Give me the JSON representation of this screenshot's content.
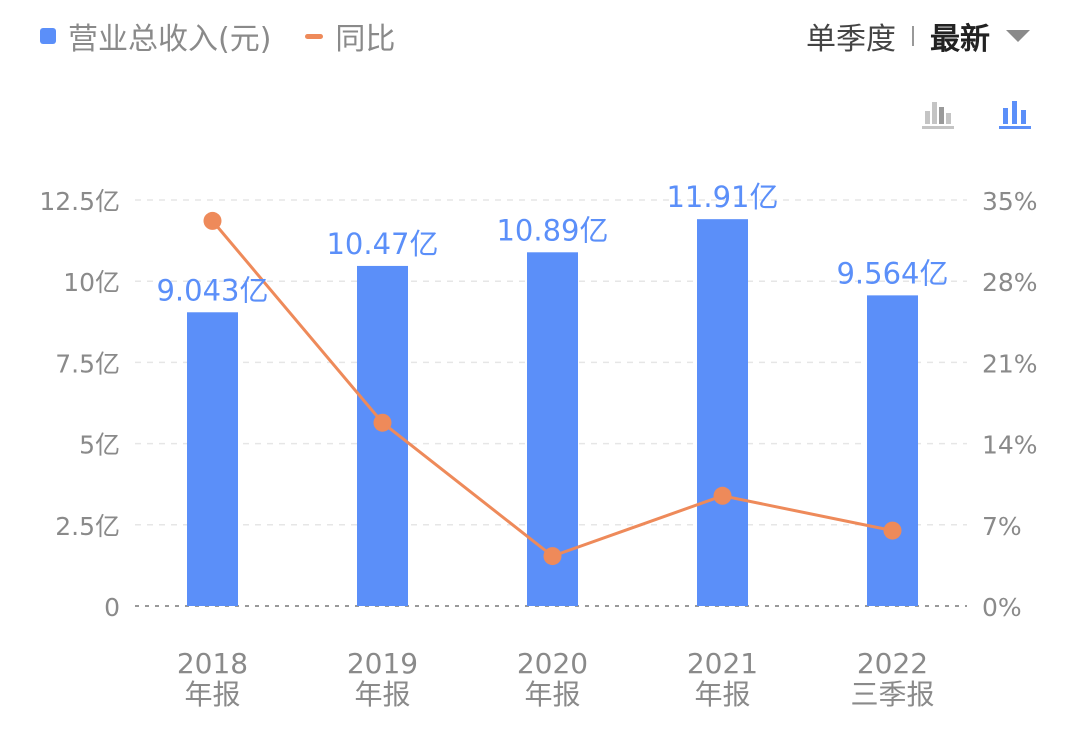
{
  "legend": {
    "bar_label": "营业总收入(元)",
    "line_label": "同比"
  },
  "controls": {
    "period_label": "单季度",
    "select_value": "最新"
  },
  "icons": {
    "chart_toggle_1": "bar-chart-gray-icon",
    "chart_toggle_2": "bar-chart-blue-icon"
  },
  "colors": {
    "bar": "#5B8FF9",
    "line": "#EE8A5A",
    "bar_label": "#5B8FF9",
    "axis_text": "#8a8a8a",
    "grid": "#e6e6e6"
  },
  "chart_data": {
    "type": "bar",
    "categories": [
      {
        "year": "2018",
        "period": "年报"
      },
      {
        "year": "2019",
        "period": "年报"
      },
      {
        "year": "2020",
        "period": "年报"
      },
      {
        "year": "2021",
        "period": "年报"
      },
      {
        "year": "2022",
        "period": "三季报"
      }
    ],
    "series": [
      {
        "name": "营业总收入(元)",
        "type": "bar",
        "axis": "left",
        "values": [
          9.043,
          10.47,
          10.89,
          11.91,
          9.564
        ],
        "labels": [
          "9.043亿",
          "10.47亿",
          "10.89亿",
          "11.91亿",
          "9.564亿"
        ]
      },
      {
        "name": "同比",
        "type": "line",
        "axis": "right",
        "values": [
          33.2,
          15.8,
          4.3,
          9.5,
          6.5
        ]
      }
    ],
    "y_left": {
      "ylim": [
        0,
        12.5
      ],
      "ticks": [
        0,
        2.5,
        5,
        7.5,
        10,
        12.5
      ],
      "tick_labels": [
        "0",
        "2.5亿",
        "5亿",
        "7.5亿",
        "10亿",
        "12.5亿"
      ]
    },
    "y_right": {
      "ylim": [
        0,
        35
      ],
      "ticks": [
        0,
        7,
        14,
        21,
        28,
        35
      ],
      "tick_labels": [
        "0%",
        "7%",
        "14%",
        "21%",
        "28%",
        "35%"
      ]
    },
    "grid": true
  }
}
